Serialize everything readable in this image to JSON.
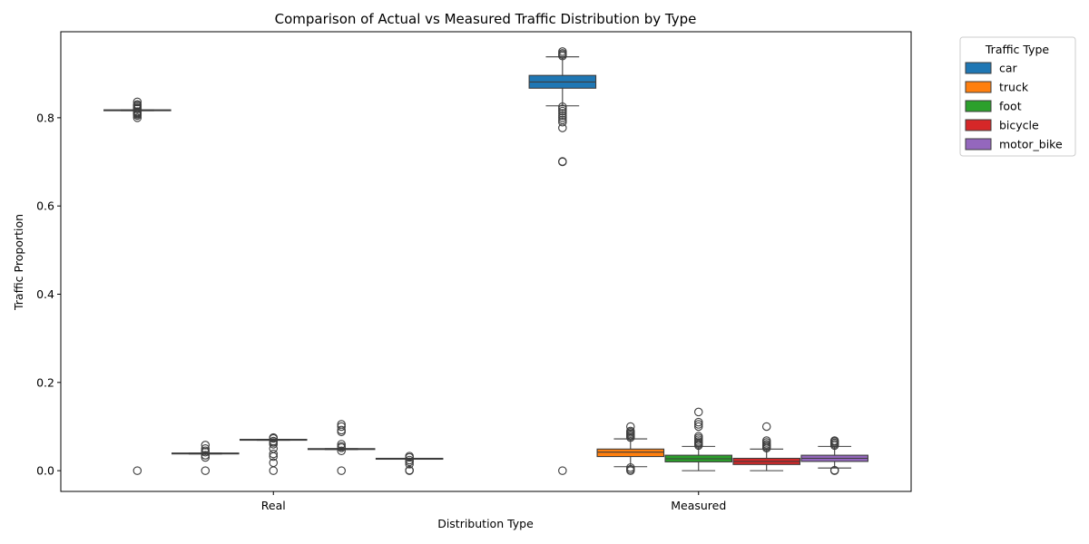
{
  "chart_data": {
    "type": "boxplot",
    "title": "Comparison of Actual vs Measured Traffic Distribution by Type",
    "xlabel": "Distribution Type",
    "ylabel": "Traffic Proportion",
    "categories": [
      "Real",
      "Measured"
    ],
    "ylim": [
      -0.047,
      0.995
    ],
    "yticks": [
      0.0,
      0.2,
      0.4,
      0.6,
      0.8
    ],
    "ytick_labels": [
      "0.0",
      "0.2",
      "0.4",
      "0.6",
      "0.8"
    ],
    "grid": false,
    "legend": {
      "title": "Traffic Type",
      "placement": "outside-top-right"
    },
    "series": [
      {
        "name": "car",
        "color": "#1f77b4",
        "boxes": [
          {
            "q1": 0.816,
            "median": 0.817,
            "q3": 0.818,
            "whislo": 0.816,
            "whishi": 0.818,
            "fliers": [
              0.0,
              0.8,
              0.805,
              0.808,
              0.81,
              0.812,
              0.814,
              0.82,
              0.822,
              0.825,
              0.828,
              0.83,
              0.836
            ]
          },
          {
            "q1": 0.867,
            "median": 0.881,
            "q3": 0.896,
            "whislo": 0.827,
            "whishi": 0.938,
            "fliers": [
              0.0,
              0.7,
              0.701,
              0.777,
              0.79,
              0.795,
              0.8,
              0.805,
              0.81,
              0.815,
              0.82,
              0.825,
              0.94,
              0.943,
              0.946,
              0.95
            ]
          }
        ]
      },
      {
        "name": "truck",
        "color": "#ff7f0e",
        "boxes": [
          {
            "q1": 0.038,
            "median": 0.039,
            "q3": 0.04,
            "whislo": 0.038,
            "whishi": 0.04,
            "fliers": [
              0.0,
              0.03,
              0.035,
              0.042,
              0.045,
              0.05,
              0.058
            ]
          },
          {
            "q1": 0.032,
            "median": 0.042,
            "q3": 0.049,
            "whislo": 0.009,
            "whishi": 0.072,
            "fliers": [
              0.0,
              0.003,
              0.007,
              0.075,
              0.078,
              0.081,
              0.084,
              0.087,
              0.09,
              0.1
            ]
          }
        ]
      },
      {
        "name": "foot",
        "color": "#2ca02c",
        "boxes": [
          {
            "q1": 0.069,
            "median": 0.07,
            "q3": 0.071,
            "whislo": 0.069,
            "whishi": 0.071,
            "fliers": [
              0.0,
              0.018,
              0.032,
              0.038,
              0.05,
              0.06,
              0.064,
              0.067,
              0.073,
              0.075
            ]
          },
          {
            "q1": 0.02,
            "median": 0.027,
            "q3": 0.035,
            "whislo": 0.0,
            "whishi": 0.055,
            "fliers": [
              0.057,
              0.06,
              0.063,
              0.066,
              0.07,
              0.074,
              0.078,
              0.1,
              0.105,
              0.11,
              0.133
            ]
          }
        ]
      },
      {
        "name": "bicycle",
        "color": "#d62728",
        "boxes": [
          {
            "q1": 0.048,
            "median": 0.049,
            "q3": 0.05,
            "whislo": 0.048,
            "whishi": 0.05,
            "fliers": [
              0.0,
              0.045,
              0.052,
              0.055,
              0.06,
              0.088,
              0.092,
              0.1,
              0.105
            ]
          },
          {
            "q1": 0.014,
            "median": 0.021,
            "q3": 0.028,
            "whislo": 0.0,
            "whishi": 0.049,
            "fliers": [
              0.051,
              0.054,
              0.057,
              0.06,
              0.064,
              0.068,
              0.1
            ]
          }
        ]
      },
      {
        "name": "motor_bike",
        "color": "#9467bd",
        "boxes": [
          {
            "q1": 0.026,
            "median": 0.027,
            "q3": 0.028,
            "whislo": 0.026,
            "whishi": 0.028,
            "fliers": [
              0.0,
              0.001,
              0.015,
              0.02,
              0.024,
              0.03,
              0.033
            ]
          },
          {
            "q1": 0.021,
            "median": 0.028,
            "q3": 0.035,
            "whislo": 0.006,
            "whishi": 0.055,
            "fliers": [
              0.0,
              0.001,
              0.057,
              0.06,
              0.063,
              0.066,
              0.068
            ]
          }
        ]
      }
    ]
  }
}
